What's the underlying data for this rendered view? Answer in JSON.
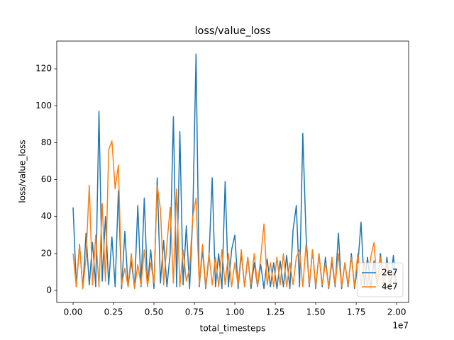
{
  "chart_data": {
    "type": "line",
    "title": "loss/value_loss",
    "xlabel": "total_timesteps",
    "ylabel": "loss/value_loss",
    "x_offset_label": "1e7",
    "x": [
      0,
      200000,
      400000,
      600000,
      800000,
      1000000,
      1200000,
      1400000,
      1600000,
      1800000,
      2000000,
      2200000,
      2400000,
      2600000,
      2800000,
      3000000,
      3200000,
      3400000,
      3600000,
      3800000,
      4000000,
      4200000,
      4400000,
      4600000,
      4800000,
      5000000,
      5200000,
      5400000,
      5600000,
      5800000,
      6000000,
      6200000,
      6400000,
      6600000,
      6800000,
      7000000,
      7200000,
      7400000,
      7600000,
      7800000,
      8000000,
      8200000,
      8400000,
      8600000,
      8800000,
      9000000,
      9200000,
      9400000,
      9600000,
      9800000,
      10000000,
      10200000,
      10400000,
      10600000,
      10800000,
      11000000,
      11200000,
      11400000,
      11600000,
      11800000,
      12000000,
      12200000,
      12400000,
      12600000,
      12800000,
      13000000,
      13200000,
      13400000,
      13600000,
      13800000,
      14000000,
      14200000,
      14400000,
      14600000,
      14800000,
      15000000,
      15200000,
      15400000,
      15600000,
      15800000,
      16000000,
      16200000,
      16400000,
      16600000,
      16800000,
      17000000,
      17200000,
      17400000,
      17600000,
      17800000,
      18000000,
      18200000,
      18400000,
      18600000,
      18800000,
      19000000,
      19200000,
      19400000,
      19600000,
      19800000,
      20000000
    ],
    "series": [
      {
        "name": "2e7",
        "color": "#1f77b4",
        "values": [
          45,
          2,
          25,
          1,
          31,
          3,
          26,
          2,
          97,
          5,
          40,
          3,
          29,
          2,
          54,
          1,
          32,
          2,
          16,
          1,
          46,
          2,
          50,
          3,
          22,
          1,
          61,
          4,
          27,
          2,
          20,
          94,
          2,
          86,
          3,
          35,
          1,
          40,
          128,
          2,
          22,
          1,
          18,
          61,
          2,
          20,
          1,
          59,
          2,
          22,
          30,
          1,
          20,
          2,
          18,
          1,
          15,
          2,
          14,
          1,
          17,
          2,
          15,
          1,
          16,
          2,
          19,
          1,
          33,
          46,
          2,
          85,
          30,
          2,
          22,
          1,
          20,
          2,
          18,
          1,
          16,
          2,
          31,
          1,
          15,
          2,
          20,
          1,
          14,
          37,
          2,
          18,
          1,
          16,
          2,
          20,
          1,
          18,
          2,
          19,
          1
        ]
      },
      {
        "name": "4e7",
        "color": "#ff7f0e",
        "values": [
          20,
          2,
          25,
          1,
          18,
          57,
          3,
          30,
          2,
          47,
          5,
          76,
          81,
          55,
          68,
          3,
          12,
          2,
          20,
          1,
          14,
          3,
          22,
          2,
          15,
          4,
          57,
          44,
          3,
          25,
          45,
          4,
          55,
          2,
          22,
          5,
          12,
          40,
          50,
          3,
          25,
          2,
          20,
          3,
          18,
          2,
          22,
          3,
          20,
          2,
          15,
          3,
          22,
          2,
          18,
          3,
          20,
          2,
          18,
          36,
          3,
          15,
          2,
          18,
          3,
          20,
          2,
          15,
          3,
          18,
          22,
          2,
          25,
          3,
          22,
          2,
          20,
          3,
          15,
          2,
          18,
          3,
          20,
          2,
          15,
          3,
          18,
          2,
          20,
          3,
          15,
          2,
          18,
          26,
          2,
          18,
          3,
          15,
          2,
          10,
          2
        ]
      }
    ],
    "xlim": [
      -1010000,
      20740000
    ],
    "xticks": [
      {
        "value": 0,
        "label": "0.00"
      },
      {
        "value": 2500000,
        "label": "0.25"
      },
      {
        "value": 5000000,
        "label": "0.50"
      },
      {
        "value": 7500000,
        "label": "0.75"
      },
      {
        "value": 10000000,
        "label": "1.00"
      },
      {
        "value": 12500000,
        "label": "1.25"
      },
      {
        "value": 15000000,
        "label": "1.50"
      },
      {
        "value": 17500000,
        "label": "1.75"
      },
      {
        "value": 20000000,
        "label": "2.00"
      }
    ],
    "ylim": [
      -6.5,
      135
    ],
    "yticks": [
      0,
      20,
      40,
      60,
      80,
      100,
      120
    ],
    "grid": false,
    "legend": "lower right"
  }
}
